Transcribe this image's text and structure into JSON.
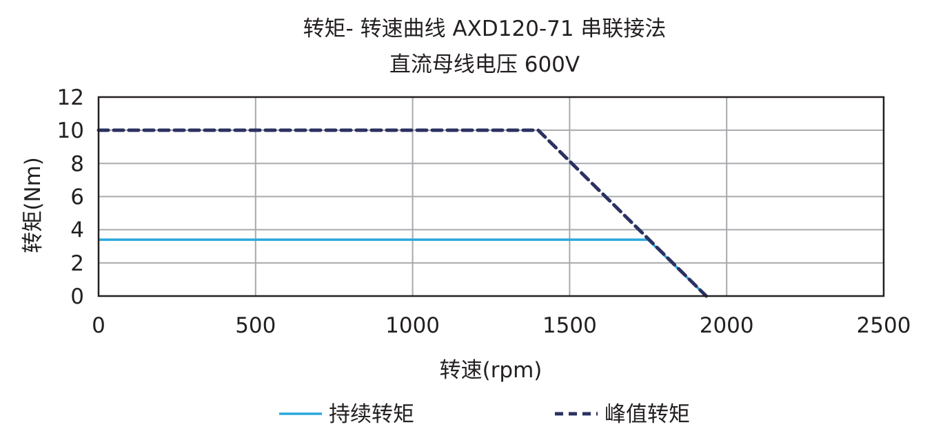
{
  "chart_data": {
    "type": "line",
    "title": "转矩- 转速曲线 AXD120-71 串联接法",
    "subtitle": "直流母线电压 600V",
    "xlabel": "转速(rpm)",
    "ylabel": "转矩(Nm)",
    "xlim": [
      0,
      2500
    ],
    "ylim": [
      0,
      12
    ],
    "xticks": [
      0,
      500,
      1000,
      1500,
      2000,
      2500
    ],
    "yticks": [
      0,
      2,
      4,
      6,
      8,
      10,
      12
    ],
    "grid": true,
    "legend_position": "bottom",
    "series": [
      {
        "name": "持续转矩",
        "color": "#29a8dd",
        "style": "solid",
        "x": [
          0,
          1750,
          1935
        ],
        "y": [
          3.4,
          3.4,
          0
        ]
      },
      {
        "name": "峰值转矩",
        "color": "#2b3160",
        "style": "dashed",
        "x": [
          0,
          1400,
          1935
        ],
        "y": [
          10,
          10,
          0
        ]
      }
    ]
  }
}
